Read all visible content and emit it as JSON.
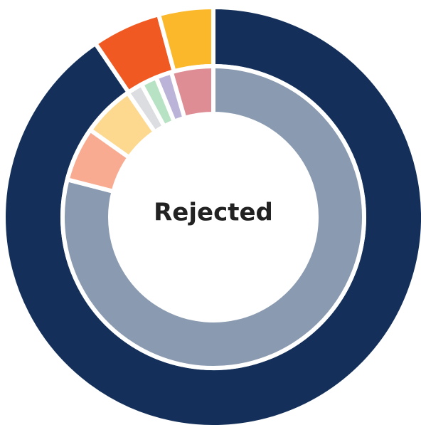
{
  "chart_data": {
    "type": "donut",
    "center_label": "Rejected",
    "series": [
      {
        "ring": "outer",
        "values": [
          90.5,
          5.3,
          4.2
        ],
        "colors": [
          "#14305a",
          "#f05a22",
          "#fbb82b"
        ]
      },
      {
        "ring": "inner",
        "values": [
          79,
          5.8,
          5.6,
          1.7,
          1.7,
          1.7,
          4.5
        ],
        "colors": [
          "#8a9ab0",
          "#f9ab91",
          "#fdd88f",
          "#dcdde0",
          "#b8e2c4",
          "#bcb4d8",
          "#de8d95"
        ]
      }
    ]
  }
}
